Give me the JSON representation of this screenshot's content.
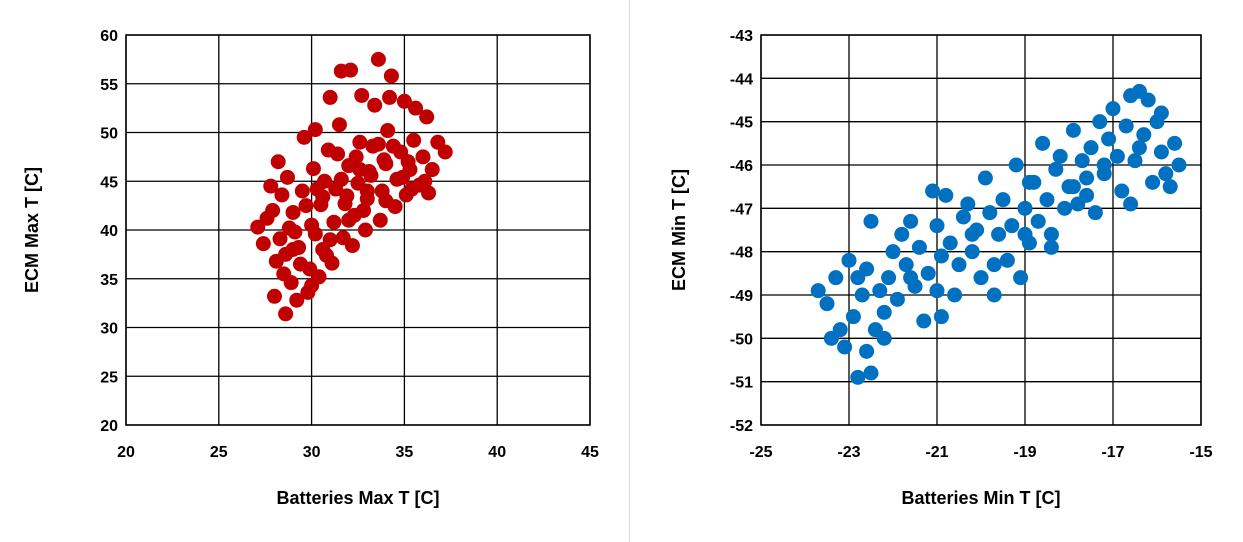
{
  "chart_data": [
    {
      "type": "scatter",
      "xlabel": "Batteries Max T [C]",
      "ylabel": "ECM Max T [C]",
      "xlim": [
        20,
        45
      ],
      "ylim": [
        20,
        60
      ],
      "xticks": [
        20,
        25,
        30,
        35,
        40,
        45
      ],
      "yticks": [
        20,
        25,
        30,
        35,
        40,
        45,
        50,
        55,
        60
      ],
      "grid": true,
      "color": "#c00000",
      "series": [
        {
          "values": [
            [
              27.1,
              40.3
            ],
            [
              27.4,
              38.6
            ],
            [
              27.6,
              41.2
            ],
            [
              27.8,
              44.5
            ],
            [
              27.9,
              42.0
            ],
            [
              28.0,
              33.2
            ],
            [
              28.1,
              36.8
            ],
            [
              28.2,
              47.0
            ],
            [
              28.3,
              39.1
            ],
            [
              28.4,
              43.6
            ],
            [
              28.6,
              31.4
            ],
            [
              28.6,
              37.5
            ],
            [
              28.7,
              45.4
            ],
            [
              28.9,
              34.6
            ],
            [
              29.0,
              41.8
            ],
            [
              29.2,
              32.8
            ],
            [
              29.3,
              38.2
            ],
            [
              29.5,
              44.0
            ],
            [
              29.6,
              49.5
            ],
            [
              29.8,
              33.6
            ],
            [
              29.9,
              36.0
            ],
            [
              30.0,
              40.5
            ],
            [
              30.1,
              46.3
            ],
            [
              30.2,
              50.3
            ],
            [
              30.4,
              35.2
            ],
            [
              30.5,
              42.6
            ],
            [
              30.6,
              38.0
            ],
            [
              30.7,
              45.0
            ],
            [
              30.9,
              48.2
            ],
            [
              31.0,
              53.6
            ],
            [
              31.1,
              36.6
            ],
            [
              31.2,
              40.8
            ],
            [
              31.3,
              44.2
            ],
            [
              31.5,
              50.8
            ],
            [
              31.6,
              56.3
            ],
            [
              31.7,
              39.2
            ],
            [
              31.8,
              42.7
            ],
            [
              32.0,
              46.6
            ],
            [
              32.1,
              56.4
            ],
            [
              32.2,
              38.4
            ],
            [
              32.3,
              41.5
            ],
            [
              32.5,
              44.8
            ],
            [
              32.6,
              49.0
            ],
            [
              32.7,
              53.8
            ],
            [
              32.9,
              40.0
            ],
            [
              33.0,
              43.2
            ],
            [
              33.1,
              46.0
            ],
            [
              33.3,
              48.6
            ],
            [
              33.4,
              52.8
            ],
            [
              33.6,
              57.5
            ],
            [
              33.7,
              41.0
            ],
            [
              33.8,
              44.0
            ],
            [
              34.0,
              46.8
            ],
            [
              34.1,
              50.2
            ],
            [
              34.2,
              53.6
            ],
            [
              34.3,
              55.8
            ],
            [
              34.5,
              42.4
            ],
            [
              34.6,
              45.2
            ],
            [
              34.8,
              48.0
            ],
            [
              35.0,
              53.2
            ],
            [
              35.1,
              43.6
            ],
            [
              35.3,
              46.2
            ],
            [
              35.5,
              49.2
            ],
            [
              35.6,
              52.5
            ],
            [
              35.8,
              44.6
            ],
            [
              36.0,
              47.5
            ],
            [
              36.2,
              51.6
            ],
            [
              36.3,
              43.8
            ],
            [
              36.5,
              46.2
            ],
            [
              36.8,
              49.0
            ],
            [
              37.2,
              48.0
            ],
            [
              28.5,
              35.5
            ],
            [
              29.1,
              39.8
            ],
            [
              29.7,
              42.5
            ],
            [
              30.3,
              44.2
            ],
            [
              30.8,
              37.4
            ],
            [
              31.4,
              47.8
            ],
            [
              31.9,
              43.5
            ],
            [
              32.4,
              47.5
            ],
            [
              32.8,
              42.0
            ],
            [
              33.2,
              45.6
            ],
            [
              33.9,
              47.2
            ],
            [
              34.4,
              48.6
            ],
            [
              34.9,
              45.4
            ],
            [
              35.4,
              44.2
            ],
            [
              30.0,
              34.3
            ],
            [
              31.0,
              39.0
            ],
            [
              32.0,
              41.0
            ],
            [
              33.0,
              44.0
            ],
            [
              34.0,
              43.0
            ],
            [
              29.4,
              36.5
            ],
            [
              28.8,
              40.2
            ],
            [
              30.6,
              43.4
            ],
            [
              31.6,
              45.2
            ],
            [
              32.6,
              46.2
            ],
            [
              33.6,
              48.8
            ],
            [
              35.2,
              47.0
            ],
            [
              36.1,
              45.0
            ],
            [
              29.0,
              38.0
            ],
            [
              30.2,
              39.6
            ]
          ]
        }
      ]
    },
    {
      "type": "scatter",
      "xlabel": "Batteries Min T [C]",
      "ylabel": "ECM Min T [C]",
      "xlim": [
        -25,
        -15
      ],
      "ylim": [
        -52,
        -43
      ],
      "xticks": [
        -25,
        -23,
        -21,
        -19,
        -17,
        -15
      ],
      "yticks": [
        -52,
        -51,
        -50,
        -49,
        -48,
        -47,
        -46,
        -45,
        -44,
        -43
      ],
      "grid": true,
      "color": "#0070c0",
      "series": [
        {
          "values": [
            [
              -23.7,
              -48.9
            ],
            [
              -23.5,
              -49.2
            ],
            [
              -23.3,
              -48.6
            ],
            [
              -23.2,
              -49.8
            ],
            [
              -23.1,
              -50.2
            ],
            [
              -23.0,
              -48.2
            ],
            [
              -22.9,
              -49.5
            ],
            [
              -22.8,
              -50.9
            ],
            [
              -22.7,
              -49.0
            ],
            [
              -22.6,
              -48.4
            ],
            [
              -22.5,
              -50.8
            ],
            [
              -22.5,
              -47.3
            ],
            [
              -22.4,
              -49.8
            ],
            [
              -22.3,
              -48.9
            ],
            [
              -22.2,
              -49.4
            ],
            [
              -22.1,
              -48.6
            ],
            [
              -22.0,
              -48.0
            ],
            [
              -21.9,
              -49.1
            ],
            [
              -21.8,
              -47.6
            ],
            [
              -21.7,
              -48.3
            ],
            [
              -21.6,
              -47.3
            ],
            [
              -21.5,
              -48.8
            ],
            [
              -21.4,
              -47.9
            ],
            [
              -21.3,
              -49.6
            ],
            [
              -21.2,
              -48.5
            ],
            [
              -21.1,
              -46.6
            ],
            [
              -21.0,
              -47.4
            ],
            [
              -20.9,
              -48.1
            ],
            [
              -20.8,
              -46.7
            ],
            [
              -20.7,
              -47.8
            ],
            [
              -20.6,
              -49.0
            ],
            [
              -20.5,
              -48.3
            ],
            [
              -20.4,
              -47.2
            ],
            [
              -20.3,
              -46.9
            ],
            [
              -20.2,
              -48.0
            ],
            [
              -20.1,
              -47.5
            ],
            [
              -20.0,
              -48.6
            ],
            [
              -19.9,
              -46.3
            ],
            [
              -19.8,
              -47.1
            ],
            [
              -19.7,
              -49.0
            ],
            [
              -19.6,
              -47.6
            ],
            [
              -19.5,
              -46.8
            ],
            [
              -19.4,
              -48.2
            ],
            [
              -19.3,
              -47.4
            ],
            [
              -19.2,
              -46.0
            ],
            [
              -19.1,
              -48.6
            ],
            [
              -19.0,
              -47.0
            ],
            [
              -18.9,
              -47.8
            ],
            [
              -18.8,
              -46.4
            ],
            [
              -18.7,
              -47.3
            ],
            [
              -18.6,
              -45.5
            ],
            [
              -18.5,
              -46.8
            ],
            [
              -18.4,
              -47.6
            ],
            [
              -18.3,
              -46.1
            ],
            [
              -18.2,
              -45.8
            ],
            [
              -18.1,
              -47.0
            ],
            [
              -18.0,
              -46.5
            ],
            [
              -17.9,
              -45.2
            ],
            [
              -17.8,
              -46.9
            ],
            [
              -17.7,
              -45.9
            ],
            [
              -17.6,
              -46.3
            ],
            [
              -17.5,
              -45.6
            ],
            [
              -17.4,
              -47.1
            ],
            [
              -17.3,
              -45.0
            ],
            [
              -17.2,
              -46.2
            ],
            [
              -17.1,
              -45.4
            ],
            [
              -17.0,
              -44.7
            ],
            [
              -16.9,
              -45.8
            ],
            [
              -16.8,
              -46.6
            ],
            [
              -16.7,
              -45.1
            ],
            [
              -16.6,
              -44.4
            ],
            [
              -16.5,
              -45.9
            ],
            [
              -16.4,
              -44.3
            ],
            [
              -16.3,
              -45.3
            ],
            [
              -16.2,
              -44.5
            ],
            [
              -16.1,
              -46.4
            ],
            [
              -16.0,
              -45.0
            ],
            [
              -15.9,
              -44.8
            ],
            [
              -15.8,
              -46.2
            ],
            [
              -15.7,
              -46.5
            ],
            [
              -15.6,
              -45.5
            ],
            [
              -15.5,
              -46.0
            ],
            [
              -15.9,
              -45.7
            ],
            [
              -16.6,
              -46.9
            ],
            [
              -17.6,
              -46.7
            ],
            [
              -18.9,
              -46.4
            ],
            [
              -20.2,
              -47.6
            ],
            [
              -21.6,
              -48.6
            ],
            [
              -22.8,
              -48.6
            ],
            [
              -23.4,
              -50.0
            ],
            [
              -22.2,
              -50.0
            ],
            [
              -20.9,
              -49.5
            ],
            [
              -19.7,
              -48.3
            ],
            [
              -18.4,
              -47.9
            ],
            [
              -17.2,
              -46.0
            ],
            [
              -16.4,
              -45.6
            ],
            [
              -21.0,
              -48.9
            ],
            [
              -22.6,
              -50.3
            ],
            [
              -19.0,
              -47.6
            ],
            [
              -17.9,
              -46.5
            ]
          ]
        }
      ]
    }
  ]
}
